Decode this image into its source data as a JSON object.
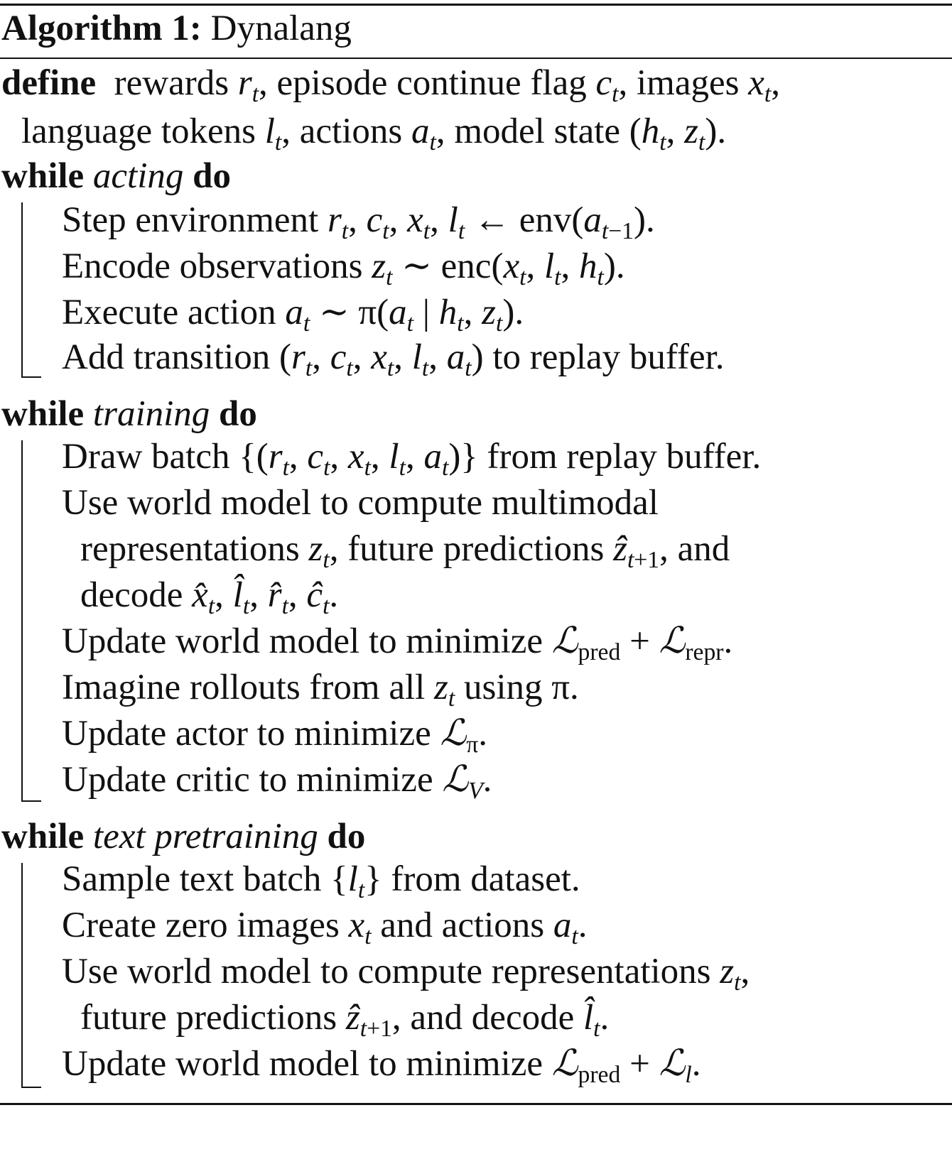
{
  "header": {
    "label": "Algorithm 1:",
    "name": "Dynalang"
  },
  "define": {
    "keyword": "define",
    "t1": "rewards ",
    "t2": ", episode continue flag ",
    "t3": ", images ",
    "t4": ",",
    "t5": "language tokens ",
    "t6": ", actions ",
    "t7": ", model state ",
    "t8": "."
  },
  "acting": {
    "kw_while": "while",
    "cond": "acting",
    "kw_do": "do",
    "s1a": "Step environment ",
    "s1b": ".",
    "s2a": "Encode observations ",
    "s2b": ".",
    "s3a": "Execute action ",
    "s3b": ".",
    "s4a": "Add transition ",
    "s4b": " to replay buffer."
  },
  "training": {
    "kw_while": "while",
    "cond": "training",
    "kw_do": "do",
    "s1a": "Draw batch ",
    "s1b": " from replay buffer.",
    "s2a": "Use world model to compute multimodal",
    "s2b": "representations ",
    "s2c": ", future predictions ",
    "s2d": ", and",
    "s2e": "decode ",
    "s2f": ".",
    "s3a": "Update world model to minimize ",
    "s3b": ".",
    "s4a": "Imagine rollouts from all ",
    "s4b": " using ",
    "s4c": ".",
    "s5a": "Update actor to minimize ",
    "s5b": ".",
    "s6a": "Update critic to minimize ",
    "s6b": "."
  },
  "pretrain": {
    "kw_while": "while",
    "cond": "text pretraining",
    "kw_do": "do",
    "s1a": "Sample text batch ",
    "s1b": " from dataset.",
    "s2a": "Create zero images ",
    "s2b": " and actions ",
    "s2c": ".",
    "s3a": "Use world model to compute representations ",
    "s3b": ",",
    "s3c": "future predictions ",
    "s3d": ", and decode ",
    "s3e": ".",
    "s4a": "Update world model to minimize ",
    "s4b": "."
  }
}
